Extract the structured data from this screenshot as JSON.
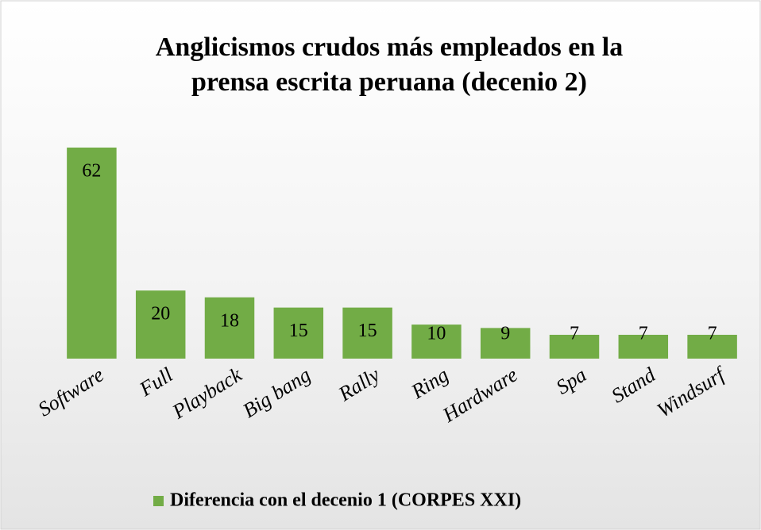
{
  "chart_data": {
    "type": "bar",
    "title": [
      "Anglicismos crudos más empleados en la",
      "prensa escrita peruana (decenio 2)"
    ],
    "categories": [
      "Software",
      "Full",
      "Playback",
      "Big bang",
      "Rally",
      "Ring",
      "Hardware",
      "Spa",
      "Stand",
      "Windsurf"
    ],
    "series": [
      {
        "name": "Diferencia con el decenio 1 (CORPES XXI)",
        "color": "#72ac46",
        "values": [
          62,
          20,
          18,
          15,
          15,
          10,
          9,
          7,
          7,
          7
        ]
      }
    ],
    "legend": "bottom"
  }
}
